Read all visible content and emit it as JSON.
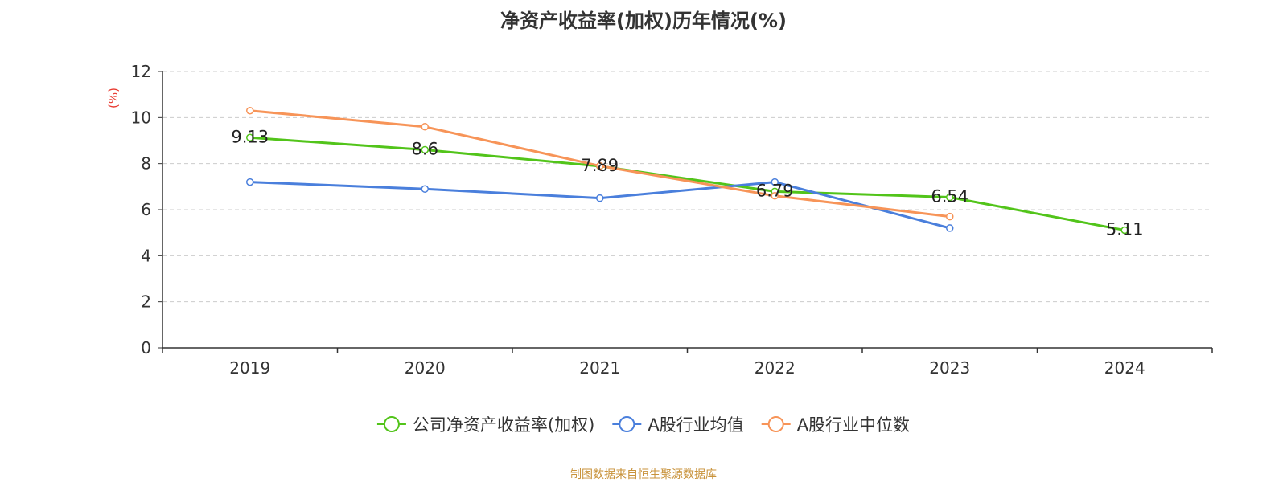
{
  "chart_data": {
    "type": "line",
    "title": "净资产收益率(加权)历年情况(%)",
    "ylabel": "(%)",
    "xlabel": "",
    "categories": [
      "2019",
      "2020",
      "2021",
      "2022",
      "2023",
      "2024"
    ],
    "ylim": [
      0,
      12
    ],
    "yticks": [
      0,
      2,
      4,
      6,
      8,
      10,
      12
    ],
    "grid": true,
    "legend_position": "bottom",
    "series": [
      {
        "name": "公司净资产收益率(加权)",
        "color": "#52c41a",
        "values": [
          9.13,
          8.6,
          7.89,
          6.79,
          6.54,
          5.11
        ],
        "labels": [
          "9.13",
          "8.6",
          "7.89",
          "6.79",
          "6.54",
          "5.11"
        ]
      },
      {
        "name": "A股行业均值",
        "color": "#4a7fdc",
        "values": [
          7.2,
          6.9,
          6.5,
          7.2,
          5.2,
          null
        ]
      },
      {
        "name": "A股行业中位数",
        "color": "#f79458",
        "values": [
          10.3,
          9.6,
          7.9,
          6.6,
          5.7,
          null
        ]
      }
    ]
  },
  "footer": {
    "source": "制图数据来自恒生聚源数据库"
  }
}
